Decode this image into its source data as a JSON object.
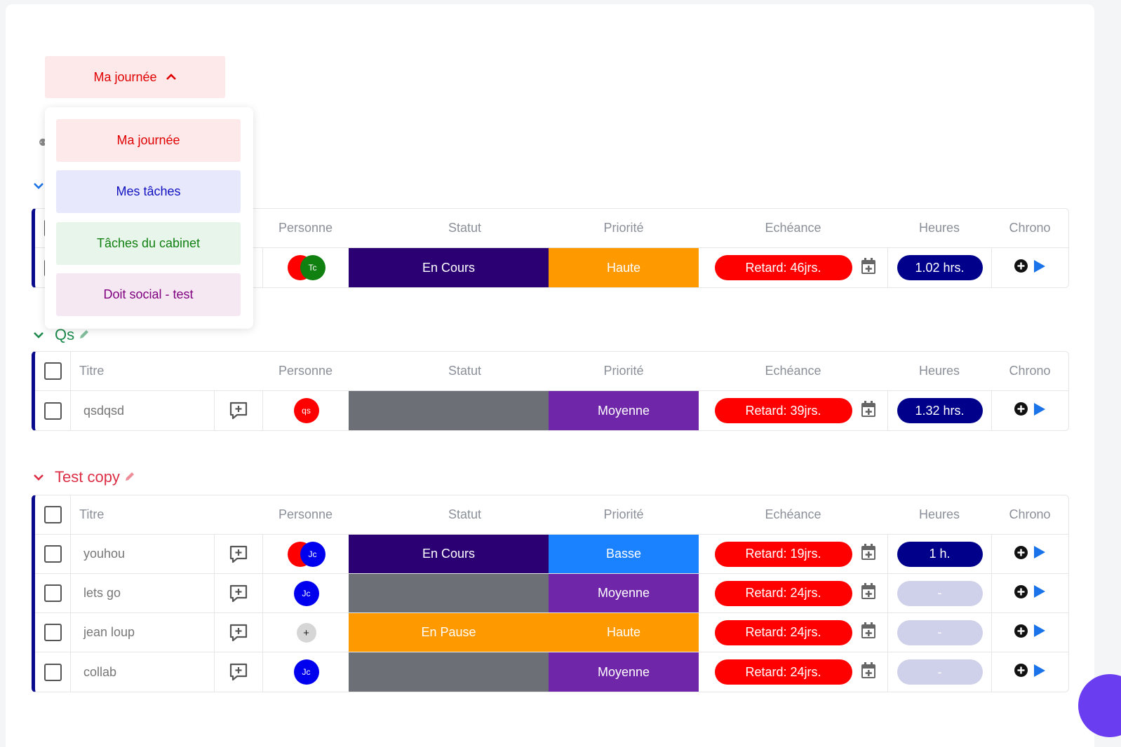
{
  "view_selector": {
    "label": "Ma journée",
    "color": "#e00000",
    "options": [
      {
        "label": "Ma journée",
        "bg": "#fde8ea",
        "color": "#e00000"
      },
      {
        "label": "Mes tâches",
        "bg": "#e8e8fd",
        "color": "#1010c0"
      },
      {
        "label": "Tâches du cabinet",
        "bg": "#e8f5ea",
        "color": "#108010"
      },
      {
        "label": "Doit social - test",
        "bg": "#f5e8f3",
        "color": "#800080"
      }
    ]
  },
  "columns": {
    "title": "Titre",
    "person": "Personne",
    "status": "Statut",
    "priority": "Priorité",
    "due": "Echéance",
    "hours": "Heures",
    "chrono": "Chrono"
  },
  "groups": [
    {
      "name": "",
      "color": "#1a73e8",
      "header_hidden": true,
      "rows": [
        {
          "title": "",
          "avatars": [
            {
              "initials": "",
              "bg": "#ff0000"
            },
            {
              "initials": "Tc",
              "bg": "#108010"
            }
          ],
          "status": "En Cours",
          "status_bg": "#2a0073",
          "priority": "Haute",
          "priority_bg": "#ff9900",
          "due": "Retard: 46jrs.",
          "hours": "1.02 hrs.",
          "hours_empty": false
        }
      ]
    },
    {
      "name": "Qs",
      "color": "#1e8a4c",
      "rows": [
        {
          "title": "qsdqsd",
          "avatars": [
            {
              "initials": "qs",
              "bg": "#ff0000"
            }
          ],
          "status": "",
          "status_bg": "#6c6f75",
          "priority": "Moyenne",
          "priority_bg": "#7026a8",
          "due": "Retard: 39jrs.",
          "hours": "1.32 hrs.",
          "hours_empty": false
        }
      ]
    },
    {
      "name": "Test copy",
      "color": "#dc2f45",
      "rows": [
        {
          "title": "youhou",
          "avatars": [
            {
              "initials": "",
              "bg": "#ff0000"
            },
            {
              "initials": "Jc",
              "bg": "#0000ee"
            }
          ],
          "status": "En Cours",
          "status_bg": "#2a0073",
          "priority": "Basse",
          "priority_bg": "#1a82ff",
          "due": "Retard: 19jrs.",
          "hours": "1 h.",
          "hours_empty": false
        },
        {
          "title": "lets go",
          "avatars": [
            {
              "initials": "Jc",
              "bg": "#0000ee"
            }
          ],
          "status": "",
          "status_bg": "#6c6f75",
          "priority": "Moyenne",
          "priority_bg": "#7026a8",
          "due": "Retard: 24jrs.",
          "hours": "-",
          "hours_empty": true
        },
        {
          "title": "jean loup",
          "avatars": [
            {
              "initials": "+",
              "bg": "#d6d6d6"
            }
          ],
          "status": "En Pause",
          "status_bg": "#ff9900",
          "priority": "Haute",
          "priority_bg": "#ff9900",
          "due": "Retard: 24jrs.",
          "hours": "-",
          "hours_empty": true
        },
        {
          "title": "collab",
          "avatars": [
            {
              "initials": "Jc",
              "bg": "#0000ee"
            }
          ],
          "status": "",
          "status_bg": "#6c6f75",
          "priority": "Moyenne",
          "priority_bg": "#7026a8",
          "due": "Retard: 24jrs.",
          "hours": "-",
          "hours_empty": true
        }
      ]
    }
  ],
  "icons": {
    "chevron": "chevron-down-icon",
    "edit": "pencil-icon",
    "comment": "comment-add-icon",
    "calendar": "calendar-add-icon",
    "plus": "plus-circle-icon",
    "play": "play-icon"
  }
}
